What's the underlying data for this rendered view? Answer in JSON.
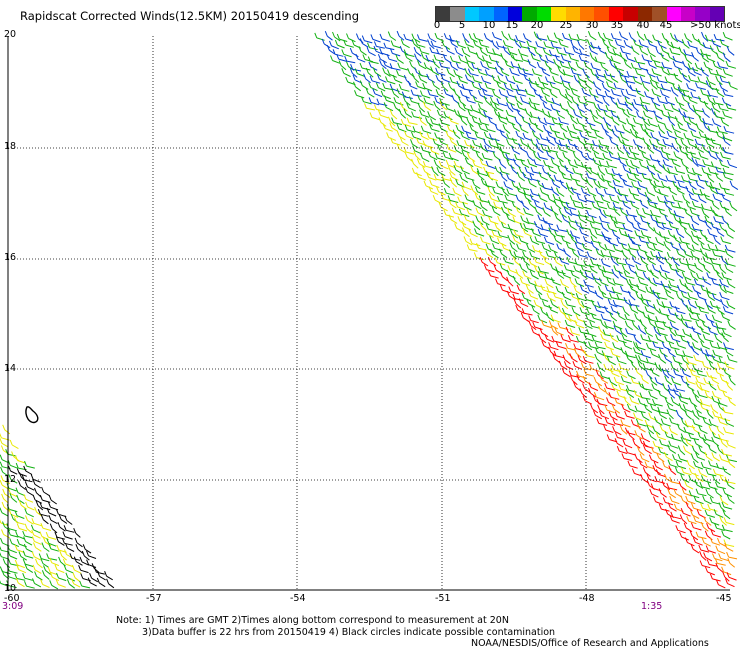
{
  "title": "Rapidscat Corrected Winds(12.5KM) 20150419 descending",
  "colorbar": {
    "colors": [
      "#3c3c3c",
      "#8c8c8c",
      "#00c8ff",
      "#00a0ff",
      "#0064ff",
      "#0000dc",
      "#00aa00",
      "#00dc00",
      "#ffdc00",
      "#ffb400",
      "#ff7800",
      "#ff5000",
      "#ff0000",
      "#c80000",
      "#8c2800",
      "#a05028",
      "#ff00ff",
      "#c800c8",
      "#9600c8",
      "#6400b4"
    ],
    "labels": [
      "0",
      "5",
      "10",
      "15",
      "20",
      "25",
      "30",
      "35",
      "40",
      "45"
    ],
    "units_label": ">50 knots"
  },
  "map": {
    "lat_labels": [
      "20",
      "18",
      "16",
      "14",
      "12",
      "10"
    ],
    "lon_labels": [
      "-60",
      "-57",
      "-54",
      "-51",
      "-48",
      "-45"
    ],
    "time_labels": {
      "left": "3:09",
      "right": "1:35"
    },
    "swath_colors": {
      "blue": "#0040d0",
      "green": "#10b010",
      "yellow": "#e8e800",
      "orange": "#ff9000",
      "red": "#ff0000",
      "black": "#000000"
    }
  },
  "notes": {
    "line1": "Note: 1) Times are GMT 2)Times along bottom correspond to measurement at 20N",
    "line2": "3)Data buffer is 22 hrs from 20150419 4) Black circles indicate possible contamination",
    "credit": "NOAA/NESDIS/Office of Research and Applications"
  }
}
